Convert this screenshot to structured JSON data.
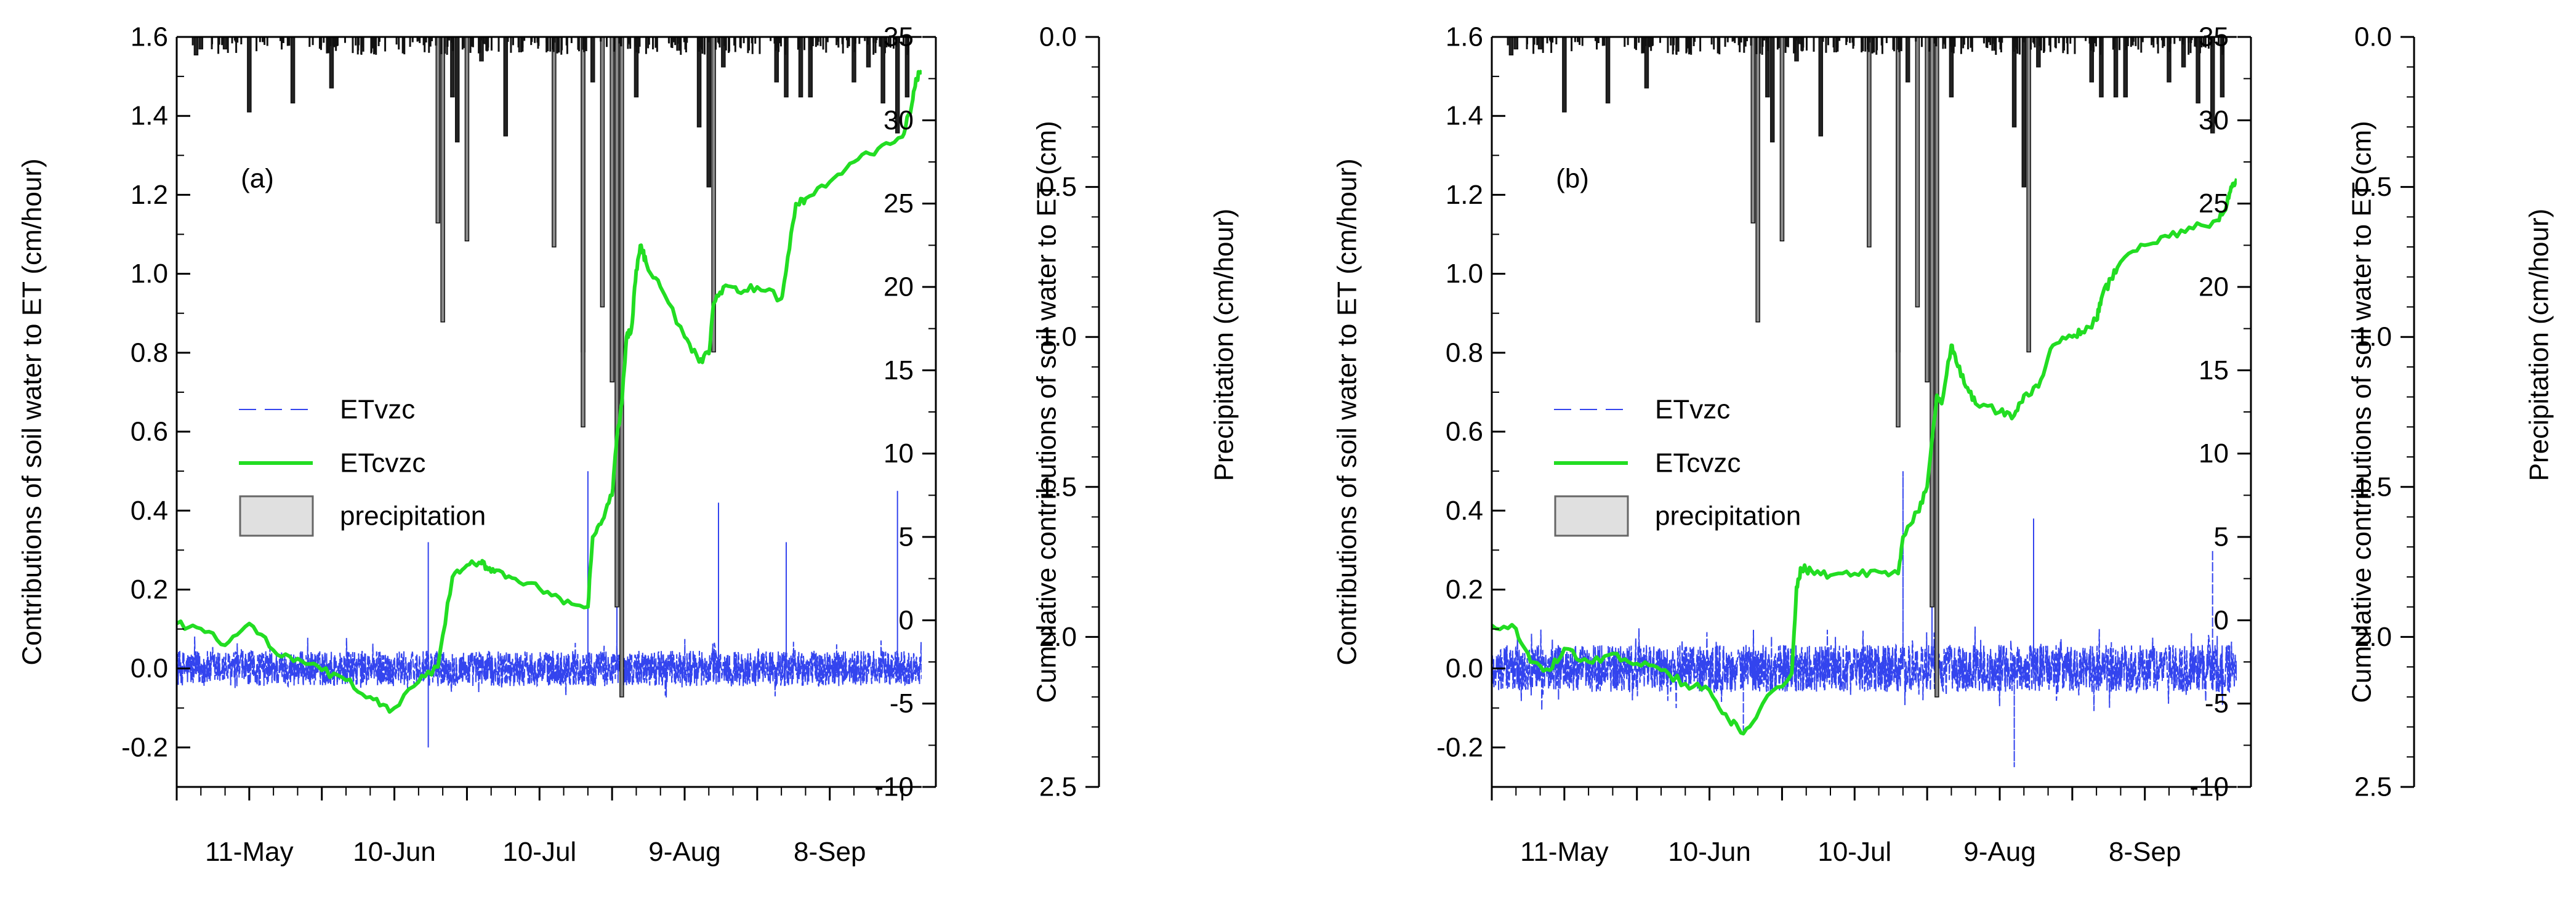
{
  "chart_data": [
    {
      "type": "line",
      "panel_label": "(a)",
      "ylabel_left": "Contributions of soil water to ET (cm/hour)",
      "ylabel_right": "Cumulative contributions of soil water to ET (cm)",
      "ylabel_precip": "Precipitation (cm/hour)",
      "ylim_left": [
        -0.3,
        1.6
      ],
      "ylim_right": [
        -10,
        35
      ],
      "ylim_precip": [
        0.0,
        2.5
      ],
      "yticks_left": [
        "-0.2",
        "0.0",
        "0.2",
        "0.4",
        "0.6",
        "0.8",
        "1.0",
        "1.2",
        "1.4",
        "1.6"
      ],
      "yticks_right": [
        "-10",
        "-5",
        "0",
        "5",
        "10",
        "15",
        "20",
        "25",
        "30",
        "35"
      ],
      "yticks_precip": [
        "0.0",
        "0.5",
        "1.0",
        "1.5",
        "2.0",
        "2.5"
      ],
      "xlim_days": [
        0,
        154
      ],
      "xticks": [
        {
          "label": "11-May",
          "day": 15
        },
        {
          "label": "10-Jun",
          "day": 45
        },
        {
          "label": "10-Jul",
          "day": 75
        },
        {
          "label": "9-Aug",
          "day": 105
        },
        {
          "label": "8-Sep",
          "day": 135
        }
      ],
      "legend": {
        "entries": [
          "ETvzc",
          "ETcvzc",
          "precipitation"
        ],
        "placement": "middle-left"
      },
      "series": [
        {
          "name": "ETcvzc",
          "axis": "right",
          "color": "#22dd22",
          "x": [
            0,
            5,
            10,
            15,
            20,
            25,
            30,
            35,
            40,
            44,
            50,
            54,
            57,
            60,
            63,
            64,
            66,
            70,
            75,
            80,
            85,
            86,
            88,
            90,
            91,
            92,
            93,
            94,
            95,
            96,
            97,
            100,
            105,
            108,
            110,
            111,
            113,
            116,
            120,
            125,
            126,
            128,
            130,
            135,
            140,
            145,
            150,
            152,
            153,
            154
          ],
          "y": [
            -0.2,
            -0.5,
            -1.5,
            -0.2,
            -1.8,
            -2.3,
            -3.0,
            -3.6,
            -4.6,
            -5.5,
            -3.7,
            -2.8,
            2.6,
            3.3,
            3.4,
            3.2,
            3.0,
            2.5,
            1.9,
            1.0,
            0.8,
            5.0,
            6.0,
            7.5,
            11,
            13,
            17,
            17.5,
            21,
            22.5,
            21.5,
            20,
            17,
            15.5,
            16,
            19,
            20,
            19.7,
            20,
            19.3,
            21,
            25,
            25.3,
            26.3,
            27.5,
            28.3,
            29,
            31,
            32.5,
            33
          ]
        },
        {
          "name": "ETvzc",
          "axis": "left",
          "color": "#3344ee",
          "style": "dashed",
          "n_points": 2400,
          "noise_amplitude": 0.045,
          "spikes": [
            {
              "day": 52,
              "value": 0.32
            },
            {
              "day": 52,
              "value": -0.2
            },
            {
              "day": 85,
              "value": 0.5
            },
            {
              "day": 91,
              "value": 0.48
            },
            {
              "day": 112,
              "value": 0.42
            },
            {
              "day": 126,
              "value": 0.32
            },
            {
              "day": 149,
              "value": 0.45
            }
          ]
        },
        {
          "name": "precipitation",
          "axis": "precip",
          "color": "#222222",
          "events": [
            {
              "day": 4,
              "value": 0.06
            },
            {
              "day": 5,
              "value": 0.04
            },
            {
              "day": 10,
              "value": 0.04
            },
            {
              "day": 15,
              "value": 0.25
            },
            {
              "day": 24,
              "value": 0.22
            },
            {
              "day": 32,
              "value": 0.17
            },
            {
              "day": 54,
              "value": 0.62
            },
            {
              "day": 55,
              "value": 0.95
            },
            {
              "day": 57,
              "value": 0.2
            },
            {
              "day": 58,
              "value": 0.35
            },
            {
              "day": 60,
              "value": 0.68
            },
            {
              "day": 63,
              "value": 0.08
            },
            {
              "day": 68,
              "value": 0.33
            },
            {
              "day": 78,
              "value": 0.7
            },
            {
              "day": 84,
              "value": 1.05
            },
            {
              "day": 84,
              "value": 1.3
            },
            {
              "day": 86,
              "value": 0.15
            },
            {
              "day": 88,
              "value": 0.9
            },
            {
              "day": 90,
              "value": 1.15
            },
            {
              "day": 91,
              "value": 1.9
            },
            {
              "day": 92,
              "value": 2.2
            },
            {
              "day": 95,
              "value": 0.2
            },
            {
              "day": 108,
              "value": 0.3
            },
            {
              "day": 110,
              "value": 0.5
            },
            {
              "day": 111,
              "value": 1.05
            },
            {
              "day": 113,
              "value": 0.1
            },
            {
              "day": 124,
              "value": 0.15
            },
            {
              "day": 126,
              "value": 0.2
            },
            {
              "day": 129,
              "value": 0.2
            },
            {
              "day": 131,
              "value": 0.2
            },
            {
              "day": 140,
              "value": 0.15
            },
            {
              "day": 143,
              "value": 0.1
            },
            {
              "day": 146,
              "value": 0.22
            },
            {
              "day": 149,
              "value": 0.32
            },
            {
              "day": 151,
              "value": 0.2
            }
          ]
        }
      ]
    },
    {
      "type": "line",
      "panel_label": "(b)",
      "ylabel_left": "Contributions of soil water to ET (cm/hour)",
      "ylabel_right": "Cumulative contributions of soil water to ET (cm)",
      "ylabel_precip": "Precipitation (cm/hour)",
      "ylim_left": [
        -0.3,
        1.6
      ],
      "ylim_right": [
        -10,
        35
      ],
      "ylim_precip": [
        0.0,
        2.5
      ],
      "yticks_left": [
        "-0.2",
        "0.0",
        "0.2",
        "0.4",
        "0.6",
        "0.8",
        "1.0",
        "1.2",
        "1.4",
        "1.6"
      ],
      "yticks_right": [
        "-10",
        "-5",
        "0",
        "5",
        "10",
        "15",
        "20",
        "25",
        "30",
        "35"
      ],
      "yticks_precip": [
        "0.0",
        "0.5",
        "1.0",
        "1.5",
        "2.0",
        "2.5"
      ],
      "xlim_days": [
        0,
        154
      ],
      "xticks": [
        {
          "label": "11-May",
          "day": 15
        },
        {
          "label": "10-Jun",
          "day": 45
        },
        {
          "label": "10-Jul",
          "day": 75
        },
        {
          "label": "9-Aug",
          "day": 105
        },
        {
          "label": "8-Sep",
          "day": 135
        }
      ],
      "legend": {
        "entries": [
          "ETvzc",
          "ETcvzc",
          "precipitation"
        ],
        "placement": "middle-left"
      },
      "series": [
        {
          "name": "ETcvzc",
          "axis": "right",
          "color": "#22dd22",
          "x": [
            0,
            5,
            8,
            12,
            15,
            20,
            25,
            30,
            35,
            40,
            45,
            49,
            52,
            56,
            62,
            63,
            64,
            66,
            70,
            75,
            80,
            84,
            85,
            88,
            90,
            92,
            93,
            95,
            96,
            98,
            100,
            105,
            108,
            110,
            113,
            116,
            120,
            122,
            125,
            126,
            128,
            130,
            135,
            140,
            145,
            150,
            152,
            153,
            154
          ],
          "y": [
            -0.3,
            -0.5,
            -2.5,
            -3.0,
            -1.7,
            -2.5,
            -2.0,
            -2.6,
            -3.0,
            -3.8,
            -4.2,
            -6.0,
            -6.8,
            -5.0,
            -3.2,
            2.0,
            3.1,
            3.0,
            2.7,
            2.8,
            2.9,
            2.8,
            5.0,
            6.5,
            8.0,
            13.5,
            13.0,
            16.5,
            15.5,
            14.0,
            13.0,
            12.5,
            12.3,
            13.5,
            14.0,
            16.5,
            17.0,
            17.3,
            18.0,
            19.3,
            20.5,
            21.5,
            22.5,
            23.0,
            23.5,
            24.0,
            25.0,
            26.0,
            26.5
          ]
        },
        {
          "name": "ETvzc",
          "axis": "left",
          "color": "#3344ee",
          "style": "dashed",
          "n_points": 2400,
          "noise_amplitude": 0.06,
          "spikes": [
            {
              "day": 52,
              "value": -0.17
            },
            {
              "day": 85,
              "value": 0.5
            },
            {
              "day": 91,
              "value": 0.47
            },
            {
              "day": 112,
              "value": 0.38
            },
            {
              "day": 149,
              "value": 0.3
            },
            {
              "day": 108,
              "value": -0.25
            }
          ]
        },
        {
          "name": "precipitation",
          "axis": "precip",
          "color": "#222222",
          "events": [
            {
              "day": 4,
              "value": 0.06
            },
            {
              "day": 5,
              "value": 0.04
            },
            {
              "day": 10,
              "value": 0.04
            },
            {
              "day": 15,
              "value": 0.25
            },
            {
              "day": 24,
              "value": 0.22
            },
            {
              "day": 32,
              "value": 0.17
            },
            {
              "day": 54,
              "value": 0.62
            },
            {
              "day": 55,
              "value": 0.95
            },
            {
              "day": 57,
              "value": 0.2
            },
            {
              "day": 58,
              "value": 0.35
            },
            {
              "day": 60,
              "value": 0.68
            },
            {
              "day": 63,
              "value": 0.08
            },
            {
              "day": 68,
              "value": 0.33
            },
            {
              "day": 78,
              "value": 0.7
            },
            {
              "day": 84,
              "value": 1.05
            },
            {
              "day": 84,
              "value": 1.3
            },
            {
              "day": 86,
              "value": 0.15
            },
            {
              "day": 88,
              "value": 0.9
            },
            {
              "day": 90,
              "value": 1.15
            },
            {
              "day": 91,
              "value": 1.9
            },
            {
              "day": 92,
              "value": 2.2
            },
            {
              "day": 95,
              "value": 0.2
            },
            {
              "day": 108,
              "value": 0.3
            },
            {
              "day": 110,
              "value": 0.5
            },
            {
              "day": 111,
              "value": 1.05
            },
            {
              "day": 113,
              "value": 0.1
            },
            {
              "day": 124,
              "value": 0.15
            },
            {
              "day": 126,
              "value": 0.2
            },
            {
              "day": 129,
              "value": 0.2
            },
            {
              "day": 131,
              "value": 0.2
            },
            {
              "day": 140,
              "value": 0.15
            },
            {
              "day": 143,
              "value": 0.1
            },
            {
              "day": 146,
              "value": 0.22
            },
            {
              "day": 149,
              "value": 0.32
            },
            {
              "day": 151,
              "value": 0.2
            }
          ]
        }
      ]
    }
  ]
}
